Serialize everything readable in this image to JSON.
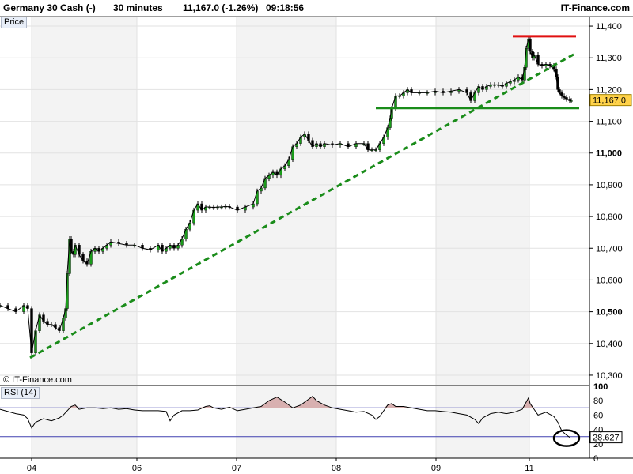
{
  "header": {
    "instrument": "Germany 30 Cash (-)",
    "interval": "30 minutes",
    "quote": "11,167.0 (-1.26%)",
    "time": "09:18:56",
    "brand": "IT-Finance.com"
  },
  "price_panel": {
    "label": "Price",
    "watermark": "© IT-Finance.com"
  },
  "rsi_panel": {
    "label": "RSI (14)"
  },
  "colors": {
    "trend": "#1a8c1a",
    "support": "#1a8c1a",
    "resistance": "#e01010",
    "rsi_line": "#000000",
    "rsi_fill": "#d8b0b0",
    "rsi_levels": "#4040b0",
    "price_tag": "#ffd24a",
    "shade": "#f3f3f3"
  },
  "chart_data": [
    {
      "type": "line",
      "title": "Price",
      "x_ticks": [
        "04",
        "06",
        "07",
        "08",
        "09",
        "11"
      ],
      "ylim": [
        10270,
        11430
      ],
      "y_ticks": [
        10300,
        10400,
        10500,
        10600,
        10700,
        10800,
        10900,
        11000,
        11100,
        11200,
        11300,
        11400
      ],
      "y_tick_labels": [
        "10,300",
        "10,400",
        "10,500",
        "10,600",
        "10,700",
        "10,800",
        "10,900",
        "11,000",
        "11,100",
        "11,200",
        "11,300",
        "11,400"
      ],
      "series": [
        {
          "x": [
            0,
            10,
            20,
            30,
            35,
            40,
            45,
            50,
            55,
            60,
            65,
            70,
            75,
            80,
            83,
            85,
            88,
            90,
            93,
            95,
            100,
            105,
            110,
            115,
            120,
            125,
            130,
            135,
            140,
            150,
            160,
            170,
            180,
            190,
            200,
            205,
            210,
            215,
            220,
            225,
            230,
            235,
            240,
            245,
            250,
            255,
            260,
            265,
            270,
            275,
            280,
            285,
            290,
            300,
            310,
            320,
            325,
            330,
            335,
            340,
            345,
            350,
            355,
            360,
            365,
            370,
            375,
            380,
            385,
            390,
            395,
            400,
            405,
            410,
            420,
            430,
            440,
            450,
            460,
            465,
            470,
            475,
            480,
            485,
            490,
            493,
            495,
            500,
            505,
            510,
            515,
            520,
            530,
            540,
            550,
            560,
            570,
            580,
            590,
            595,
            600,
            605,
            610,
            615,
            620,
            625,
            630,
            635,
            640,
            645,
            650,
            655,
            660,
            663,
            665,
            668,
            670,
            673,
            675,
            680,
            685,
            690,
            695,
            700,
            703,
            705,
            707,
            710,
            713,
            716,
            720,
            722
          ],
          "y": [
            10520,
            10510,
            10500,
            10520,
            10510,
            10370,
            10440,
            10490,
            10470,
            10460,
            10460,
            10450,
            10440,
            10480,
            10510,
            10620,
            10730,
            10690,
            10680,
            10710,
            10680,
            10660,
            10650,
            10690,
            10700,
            10690,
            10700,
            10710,
            10720,
            10715,
            10710,
            10710,
            10700,
            10695,
            10710,
            10690,
            10700,
            10710,
            10700,
            10710,
            10730,
            10760,
            10780,
            10820,
            10840,
            10820,
            10830,
            10830,
            10828,
            10830,
            10830,
            10832,
            10830,
            10820,
            10830,
            10840,
            10880,
            10890,
            10920,
            10930,
            10940,
            10930,
            10950,
            10960,
            10980,
            11020,
            11030,
            11050,
            11060,
            11040,
            11020,
            11030,
            11020,
            11030,
            11025,
            11030,
            11020,
            11030,
            11030,
            11010,
            11010,
            11010,
            11030,
            11050,
            11080,
            11110,
            11140,
            11180,
            11180,
            11190,
            11200,
            11190,
            11190,
            11190,
            11195,
            11190,
            11195,
            11200,
            11190,
            11165,
            11190,
            11210,
            11200,
            11210,
            11215,
            11215,
            11215,
            11210,
            11220,
            11225,
            11230,
            11240,
            11230,
            11270,
            11330,
            11360,
            11320,
            11300,
            11310,
            11280,
            11275,
            11280,
            11275,
            11265,
            11240,
            11200,
            11190,
            11180,
            11175,
            11170,
            11165,
            11165
          ],
          "last": 11167.0,
          "last_label": "11,167.0"
        }
      ],
      "annotations": {
        "trendline": {
          "x": [
            38,
            728
          ],
          "y": [
            10355,
            11315
          ],
          "style": "dashed"
        },
        "support": {
          "x": [
            475,
            732
          ],
          "y": 11142
        },
        "resistance": {
          "x": [
            648,
            728
          ],
          "y": 11368
        }
      }
    },
    {
      "type": "line",
      "title": "RSI (14)",
      "ylim": [
        0,
        100
      ],
      "y_ticks": [
        0,
        20,
        40,
        60,
        80,
        100
      ],
      "y_tick_labels": [
        "0",
        "20",
        "40",
        "60",
        "80",
        "100"
      ],
      "levels": [
        30,
        70
      ],
      "series": [
        {
          "x": [
            0,
            10,
            20,
            30,
            35,
            40,
            45,
            55,
            65,
            75,
            80,
            85,
            90,
            95,
            100,
            110,
            120,
            130,
            140,
            150,
            160,
            170,
            180,
            190,
            200,
            210,
            215,
            220,
            230,
            240,
            250,
            260,
            265,
            270,
            280,
            290,
            300,
            310,
            320,
            330,
            340,
            350,
            360,
            370,
            380,
            390,
            395,
            400,
            410,
            420,
            430,
            440,
            450,
            460,
            470,
            475,
            480,
            485,
            490,
            495,
            500,
            510,
            520,
            530,
            540,
            550,
            560,
            570,
            580,
            590,
            600,
            605,
            610,
            620,
            630,
            640,
            650,
            660,
            665,
            668,
            670,
            675,
            680,
            690,
            700,
            705,
            710,
            715,
            720
          ],
          "y": [
            68,
            65,
            62,
            60,
            55,
            42,
            50,
            55,
            52,
            56,
            60,
            66,
            72,
            74,
            68,
            70,
            70,
            69,
            70,
            68,
            69,
            67,
            66,
            66,
            66,
            65,
            52,
            60,
            66,
            66,
            67,
            72,
            73,
            70,
            68,
            71,
            66,
            68,
            70,
            72,
            80,
            85,
            78,
            70,
            74,
            82,
            86,
            80,
            74,
            70,
            68,
            66,
            64,
            65,
            60,
            54,
            58,
            66,
            74,
            76,
            72,
            72,
            70,
            68,
            66,
            66,
            65,
            64,
            62,
            60,
            54,
            48,
            56,
            62,
            64,
            62,
            64,
            68,
            78,
            84,
            76,
            68,
            60,
            64,
            58,
            50,
            38,
            33,
            29
          ]
        }
      ],
      "last_label": "28.627"
    }
  ]
}
